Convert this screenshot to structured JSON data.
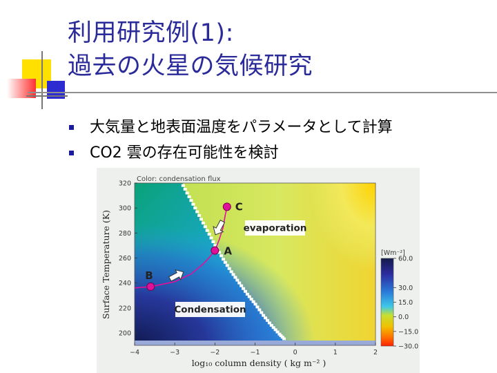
{
  "title": {
    "line1": "利用研究例(1):",
    "line2": "過去の火星の気候研究"
  },
  "bullets": [
    "大気量と地表面温度をパラメータとして計算",
    "CO2 雲の存在可能性を検討"
  ],
  "colors": {
    "title": "#2a2a9a",
    "bullet": "#1a1aa0",
    "point": "#e0109a",
    "accent_red": "#ff3030",
    "accent_yellow": "#ffe000",
    "accent_blue": "#2c2cd0"
  },
  "chart_data": {
    "type": "heatmap",
    "note": "Color: condensation flux",
    "xlabel": "log₁₀ column density ( kg m⁻² )",
    "ylabel": "Surface Temperature (K)",
    "xlim": [
      -4,
      2
    ],
    "ylim": [
      190,
      320
    ],
    "x_ticks": [
      "−4",
      "−3",
      "−2",
      "−1",
      "0",
      "1",
      "2"
    ],
    "y_ticks": [
      "320",
      "300",
      "280",
      "260",
      "240",
      "220",
      "200"
    ],
    "regions": [
      "evaporation",
      "Condensation"
    ],
    "points": [
      {
        "label": "C",
        "x": -1.7,
        "y": 301
      },
      {
        "label": "A",
        "x": -2.0,
        "y": 266
      },
      {
        "label": "B",
        "x": -3.6,
        "y": 237
      }
    ],
    "trajectory": {
      "x": [
        -4.0,
        -3.6,
        -3.0,
        -2.6,
        -2.3,
        -2.15,
        -2.0,
        -1.9,
        -1.8,
        -1.75,
        -1.7
      ],
      "y": [
        236,
        237,
        241,
        247,
        255,
        260,
        266,
        274,
        284,
        293,
        301
      ]
    },
    "arrows": [
      {
        "x": -2.95,
        "y": 246,
        "direction": "right"
      },
      {
        "x": -1.9,
        "y": 284,
        "direction": "down-left"
      }
    ],
    "boundary": {
      "x": [
        -2.8,
        -2.6,
        -2.4,
        -2.2,
        -2.0,
        -1.8,
        -1.6,
        -1.4,
        -1.2,
        -1.0,
        -0.8,
        -0.6,
        -0.4,
        -0.25
      ],
      "y": [
        318,
        306,
        294,
        282,
        270,
        259,
        249,
        240,
        231,
        223,
        214,
        206,
        199,
        194
      ]
    },
    "colorbar": {
      "unit": "[Wm⁻²]",
      "ticks": [
        "60.0",
        "30.0",
        "15.0",
        "0.0",
        "−15.0",
        "−30.0"
      ],
      "values": [
        60,
        30,
        15,
        0,
        -15,
        -30
      ],
      "colors": [
        "#141a4a",
        "#2c2ca0",
        "#2a7ad8",
        "#3ec8e8",
        "#c8e030",
        "#f0c000",
        "#ff7000",
        "#ff2000"
      ]
    }
  }
}
